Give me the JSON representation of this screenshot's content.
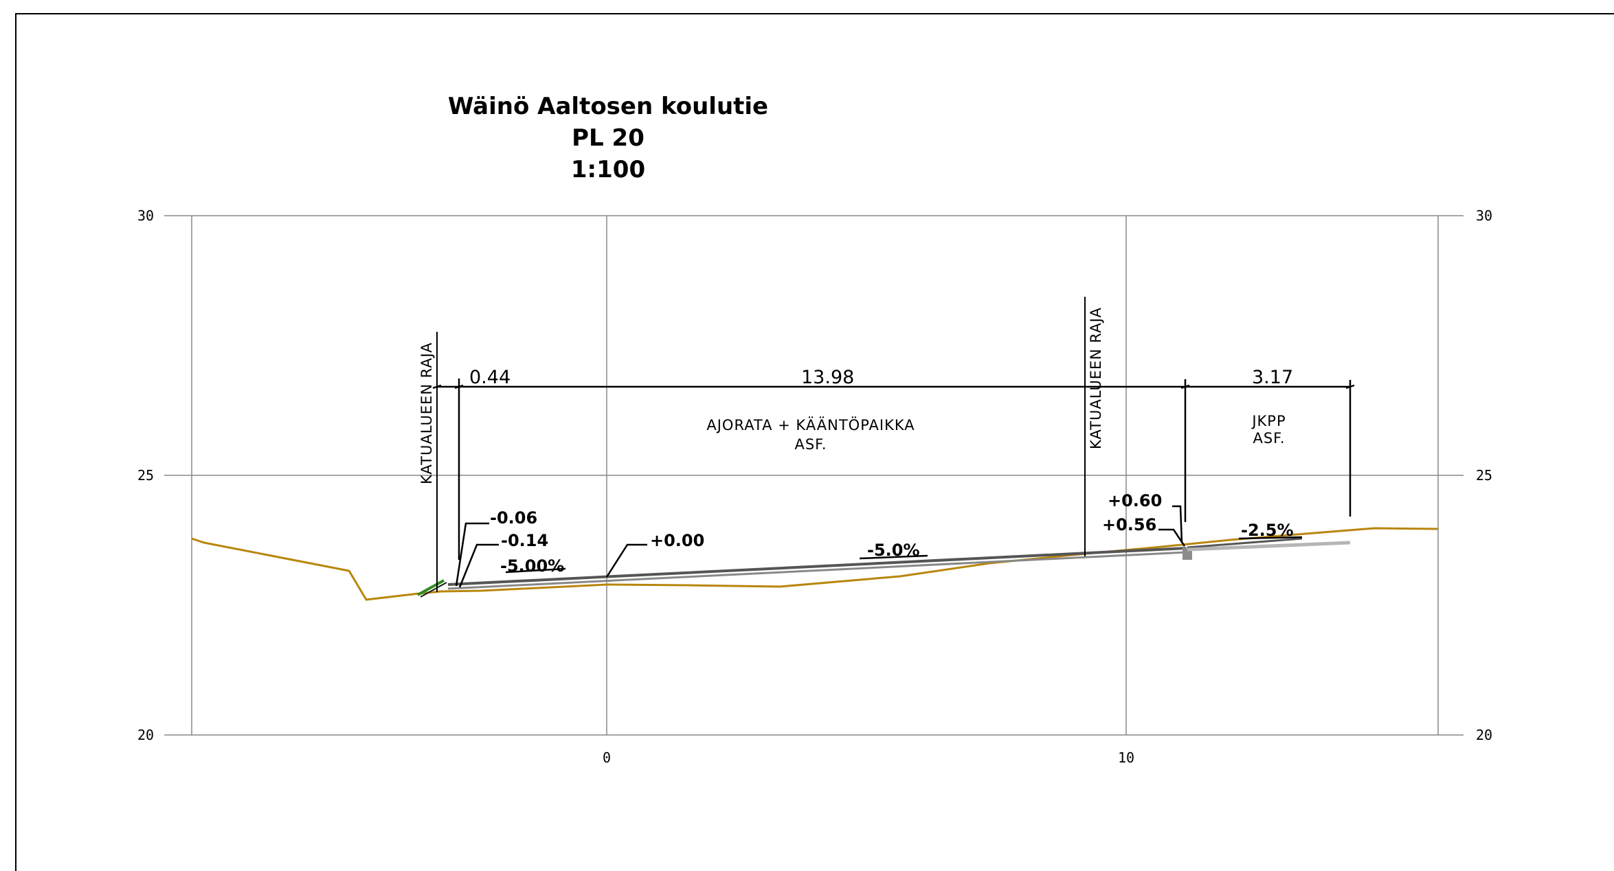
{
  "title": {
    "line1": "Wäinö Aaltosen koulutie",
    "line2": "PL 20",
    "line3": "1:100"
  },
  "axes": {
    "y_ticks": [
      "30",
      "25",
      "20"
    ],
    "x_ticks": [
      "0",
      "10"
    ]
  },
  "boundaries": {
    "left_label": "KATUALUEEN RAJA",
    "right_label": "KATUALUEEN RAJA"
  },
  "dimensions": {
    "left_width": "0.44",
    "road_width": "13.98",
    "path_width": "3.17"
  },
  "areas": {
    "road_name": "AJORATA + KÄÄNTÖPAIKKA",
    "road_surface": "ASF.",
    "path_name": "JKPP",
    "path_surface": "ASF."
  },
  "elevations": {
    "left_top": "-0.06",
    "left_bottom": "-0.14",
    "centre": "+0.00",
    "curb_top": "+0.60",
    "curb_bottom": "+0.56"
  },
  "slopes": {
    "left": "-5.00%",
    "road": "-5.0%",
    "path": "-2.5%"
  },
  "colors": {
    "ground": "#b8860b",
    "road": "#555555",
    "grid": "#888888",
    "edge_green": "#2e8b1e"
  }
}
